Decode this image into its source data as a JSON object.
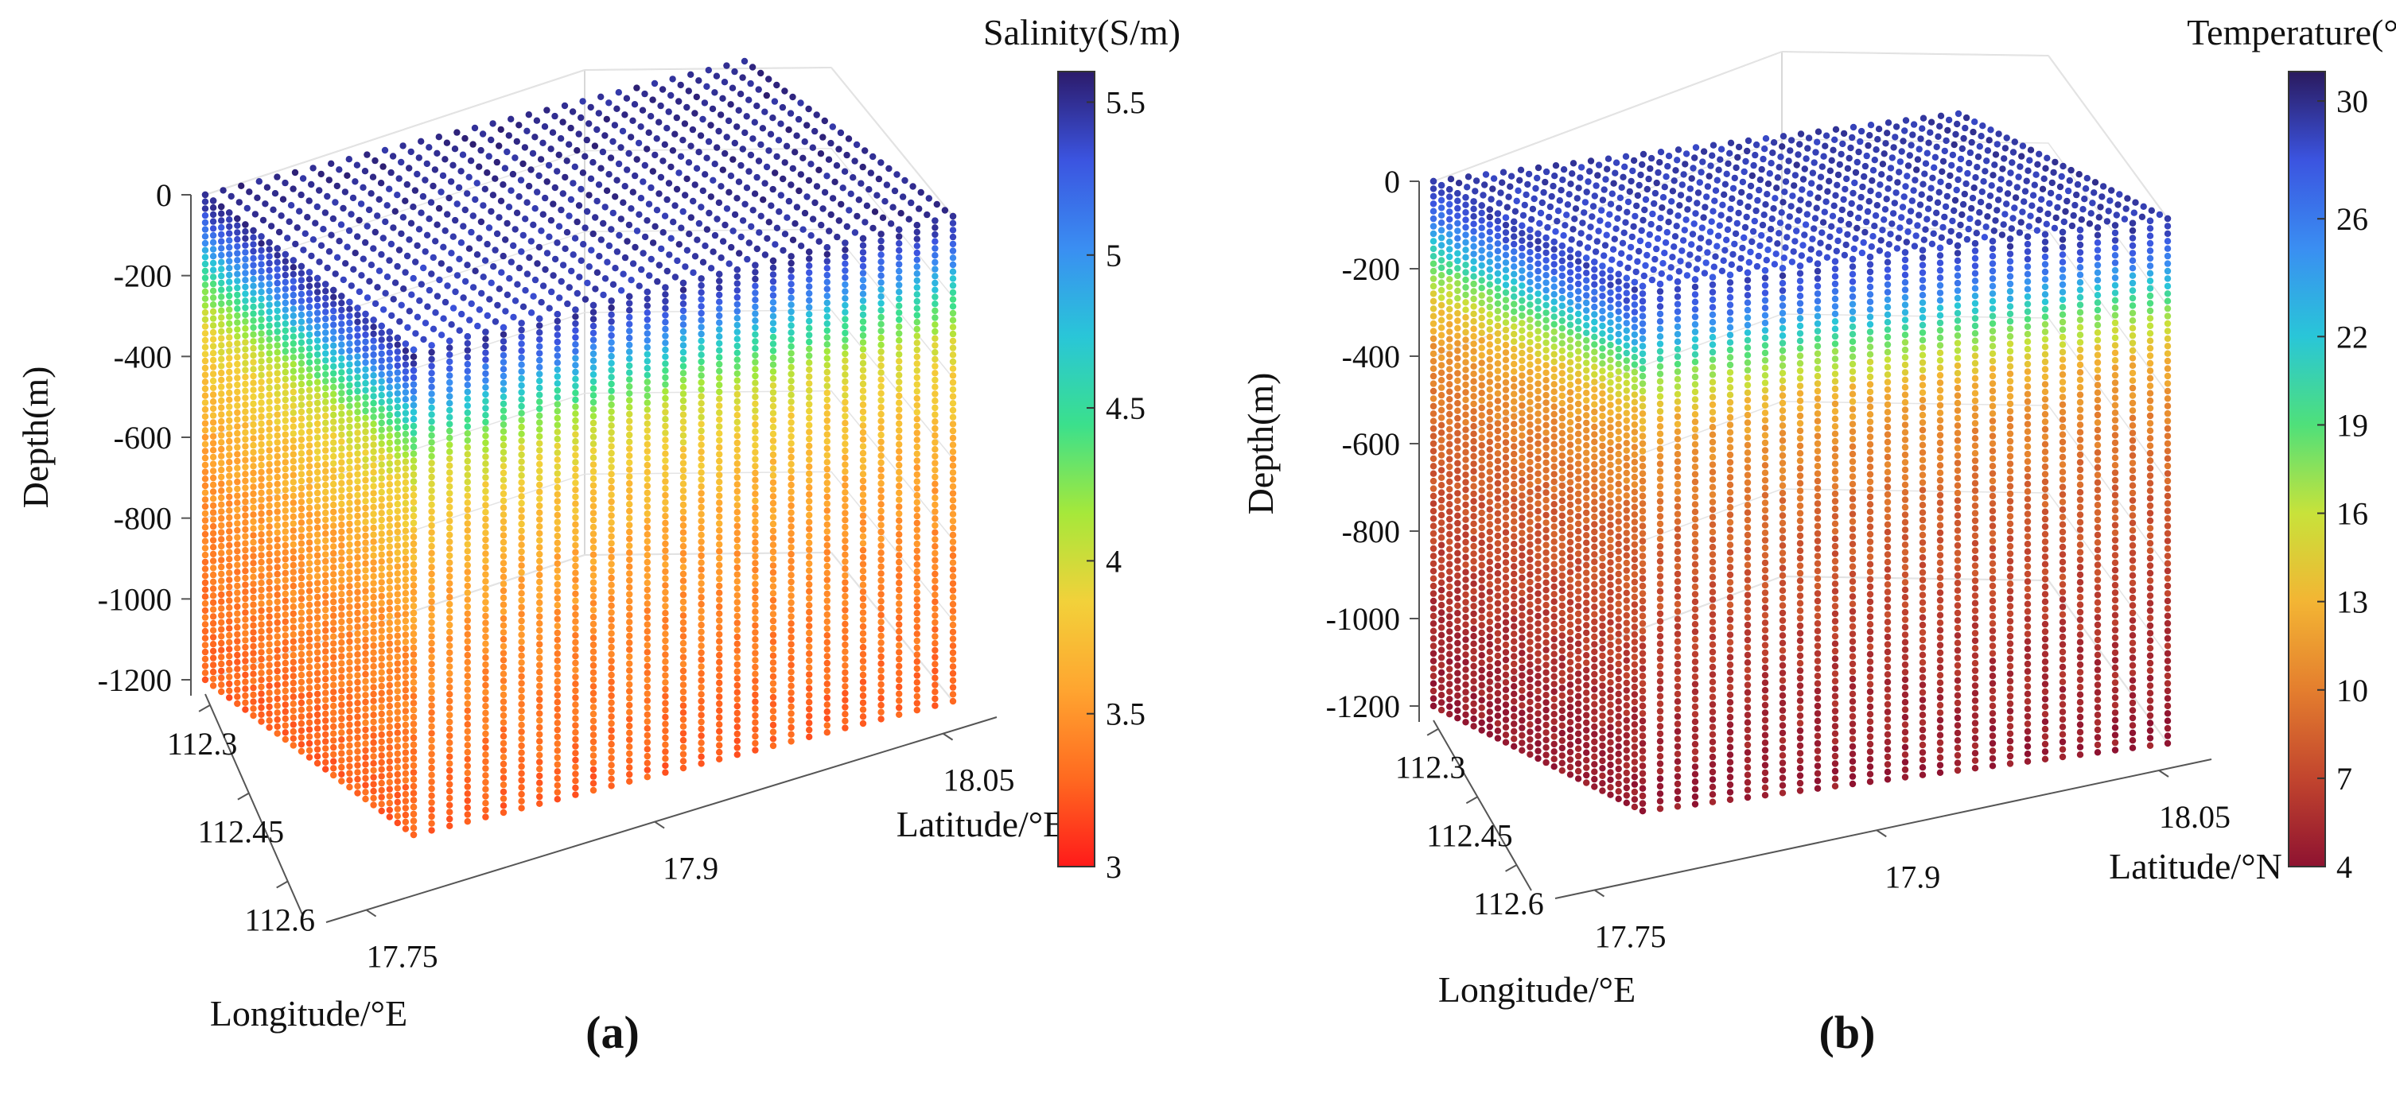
{
  "chart_data": [
    {
      "type": "scatter",
      "subtype": "3d-voxel-scatter",
      "panel_label": "(a)",
      "colorbar_title": "Salinity(S/m)",
      "colorbar_ticks": [
        "5.5",
        "5",
        "4.5",
        "4",
        "3.5",
        "3"
      ],
      "colorbar_tick_values": [
        5.5,
        5,
        4.5,
        4,
        3.5,
        3
      ],
      "colorbar_range": [
        3,
        5.6
      ],
      "zlabel": "Depth(m)",
      "zticks": [
        "0",
        "-200",
        "-400",
        "-600",
        "-800",
        "-1000",
        "-1200"
      ],
      "zlim": [
        -1200,
        0
      ],
      "xlabel": "Longitude/°E",
      "xticks": [
        "112.3",
        "112.45",
        "112.6"
      ],
      "xlim": [
        112.3,
        112.7
      ],
      "ylabel": "Latitude/°E",
      "yticks": [
        "18.05",
        "17.9",
        "17.75"
      ],
      "ylim": [
        17.7,
        18.1
      ],
      "color_by_depth": [
        {
          "depth": 0,
          "value": 5.55
        },
        {
          "depth": -60,
          "value": 5.3
        },
        {
          "depth": -120,
          "value": 5.0
        },
        {
          "depth": -200,
          "value": 4.5
        },
        {
          "depth": -300,
          "value": 4.0
        },
        {
          "depth": -400,
          "value": 3.85
        },
        {
          "depth": -600,
          "value": 3.6
        },
        {
          "depth": -800,
          "value": 3.45
        },
        {
          "depth": -1000,
          "value": 3.35
        },
        {
          "depth": -1200,
          "value": 3.25
        }
      ],
      "colormap": [
        "#ff1a1a",
        "#ff6a20",
        "#ffa530",
        "#f2d13a",
        "#a6e83a",
        "#3be08c",
        "#29c6d8",
        "#3a8ef2",
        "#3b54e0",
        "#2c1b6b"
      ]
    },
    {
      "type": "scatter",
      "subtype": "3d-voxel-scatter",
      "panel_label": "(b)",
      "colorbar_title": "Temperature(°C)",
      "colorbar_ticks": [
        "30",
        "26",
        "22",
        "19",
        "16",
        "13",
        "10",
        "7",
        "4"
      ],
      "colorbar_tick_values": [
        30,
        26,
        22,
        19,
        16,
        13,
        10,
        7,
        4
      ],
      "colorbar_range": [
        4,
        31
      ],
      "zlabel": "Depth(m)",
      "zticks": [
        "0",
        "-200",
        "-400",
        "-600",
        "-800",
        "-1000",
        "-1200"
      ],
      "zlim": [
        -1200,
        0
      ],
      "xlabel": "Longitude/°E",
      "xticks": [
        "112.3",
        "112.45",
        "112.6"
      ],
      "xlim": [
        112.3,
        112.7
      ],
      "ylabel": "Latitude/°N",
      "yticks": [
        "18.05",
        "17.9",
        "17.75"
      ],
      "ylim": [
        17.7,
        18.1
      ],
      "color_by_depth": [
        {
          "depth": 0,
          "value": 29.5
        },
        {
          "depth": -60,
          "value": 27.5
        },
        {
          "depth": -120,
          "value": 24
        },
        {
          "depth": -200,
          "value": 18
        },
        {
          "depth": -300,
          "value": 13
        },
        {
          "depth": -400,
          "value": 11
        },
        {
          "depth": -600,
          "value": 8.5
        },
        {
          "depth": -800,
          "value": 7
        },
        {
          "depth": -1000,
          "value": 5.5
        },
        {
          "depth": -1200,
          "value": 4.5
        }
      ],
      "colormap": [
        "#8e1230",
        "#c2452e",
        "#e47e2e",
        "#f3b534",
        "#c8e23a",
        "#4fe07a",
        "#29c6d8",
        "#3a8ef2",
        "#3b54e0",
        "#2a1a5e"
      ]
    }
  ]
}
